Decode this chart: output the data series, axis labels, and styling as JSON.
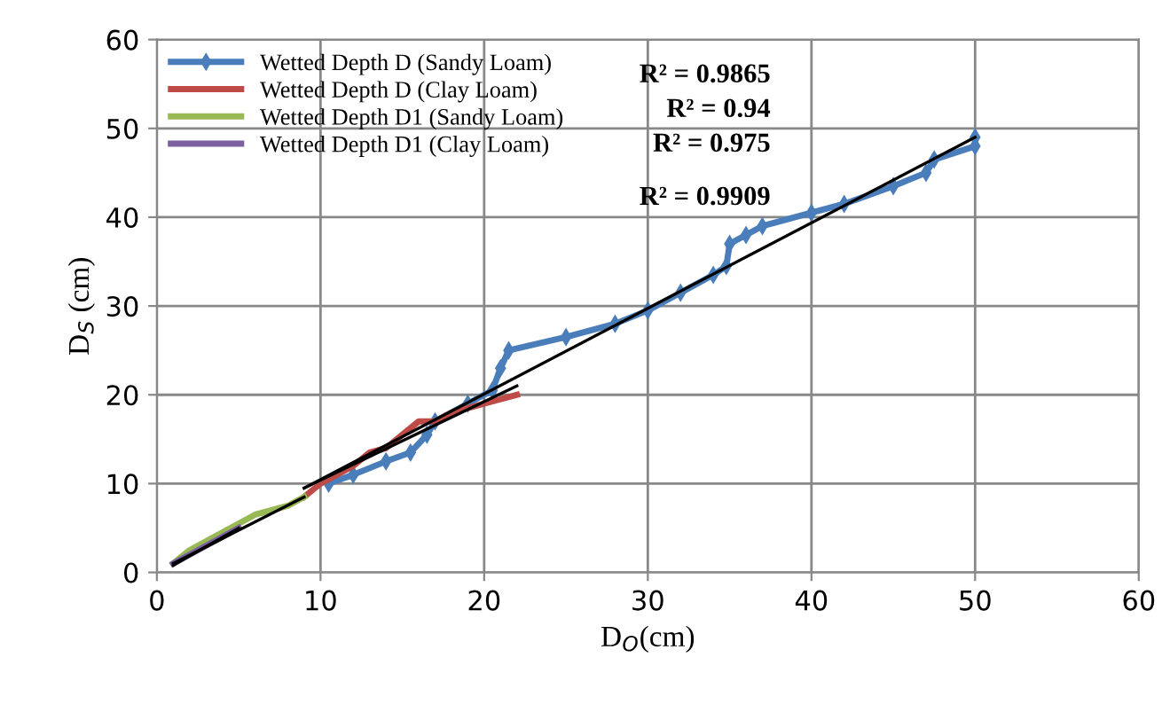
{
  "chart_data": {
    "type": "line",
    "xlabel": "D$_{O}$(cm)",
    "ylabel": "D$_{S}$ (cm)",
    "xlim": [
      0,
      60
    ],
    "ylim": [
      0,
      60
    ],
    "xticks": [
      0,
      10,
      20,
      30,
      40,
      50,
      60
    ],
    "yticks": [
      0,
      10,
      20,
      30,
      40,
      50,
      60
    ],
    "grid": true,
    "legend": "top left",
    "line_style": "solid",
    "series": [
      {
        "name": "Wetted Depth D (Sandy Loam)",
        "color": "#4a7ebb",
        "marker": "diamond",
        "x": [
          10.5,
          12,
          14,
          15.5,
          16.5,
          17,
          19,
          20.5,
          21,
          21.5,
          25,
          28,
          30,
          32,
          34,
          34.8,
          35,
          36,
          37,
          40,
          42,
          45,
          47,
          47.5,
          50,
          50
        ],
        "values": [
          10,
          11,
          12.5,
          13.5,
          15.5,
          17,
          19,
          20.5,
          23,
          25,
          26.5,
          28,
          29.5,
          31.5,
          33.5,
          34.5,
          37,
          38,
          39,
          40.5,
          41.5,
          43.5,
          45,
          46.5,
          48,
          49
        ]
      },
      {
        "name": "Wetted Depth D (Clay Loam)",
        "color": "#be4b48",
        "marker": "none",
        "x": [
          9,
          10,
          12,
          13,
          14,
          15,
          16,
          17,
          18,
          20,
          21,
          22
        ],
        "values": [
          8.5,
          10,
          12,
          13.5,
          14,
          15.5,
          17,
          17,
          18,
          19,
          19.5,
          20
        ]
      },
      {
        "name": "Wetted Depth D1 (Sandy Loam)",
        "color": "#98b954",
        "marker": "none",
        "x": [
          1,
          2,
          3,
          4,
          5,
          6,
          7,
          8,
          9
        ],
        "values": [
          1,
          2.5,
          3.5,
          4.5,
          5.5,
          6.5,
          7,
          7.5,
          8.5
        ]
      },
      {
        "name": "Wetted Depth D1 (Clay Loam)",
        "color": "#7d60a0",
        "marker": "none",
        "x": [
          1,
          2,
          3,
          4,
          5
        ],
        "values": [
          1,
          2,
          3,
          4,
          5
        ]
      },
      {
        "color": "#000000",
        "marker": "none",
        "x": [
          9,
          50
        ],
        "values": [
          9.5,
          49
        ]
      },
      {
        "color": "#000000",
        "marker": "none",
        "x": [
          9,
          22
        ],
        "values": [
          9.5,
          21
        ]
      },
      {
        "color": "#000000",
        "marker": "none",
        "x": [
          1,
          9
        ],
        "values": [
          1,
          8.5
        ]
      },
      {
        "color": "#000000",
        "marker": "none",
        "x": [
          1,
          5
        ],
        "values": [
          0.8,
          5
        ]
      }
    ],
    "annotations": [
      "R² = 0.9865",
      "R² = 0.94",
      "R² = 0.975",
      "R² = 0.9909"
    ]
  }
}
